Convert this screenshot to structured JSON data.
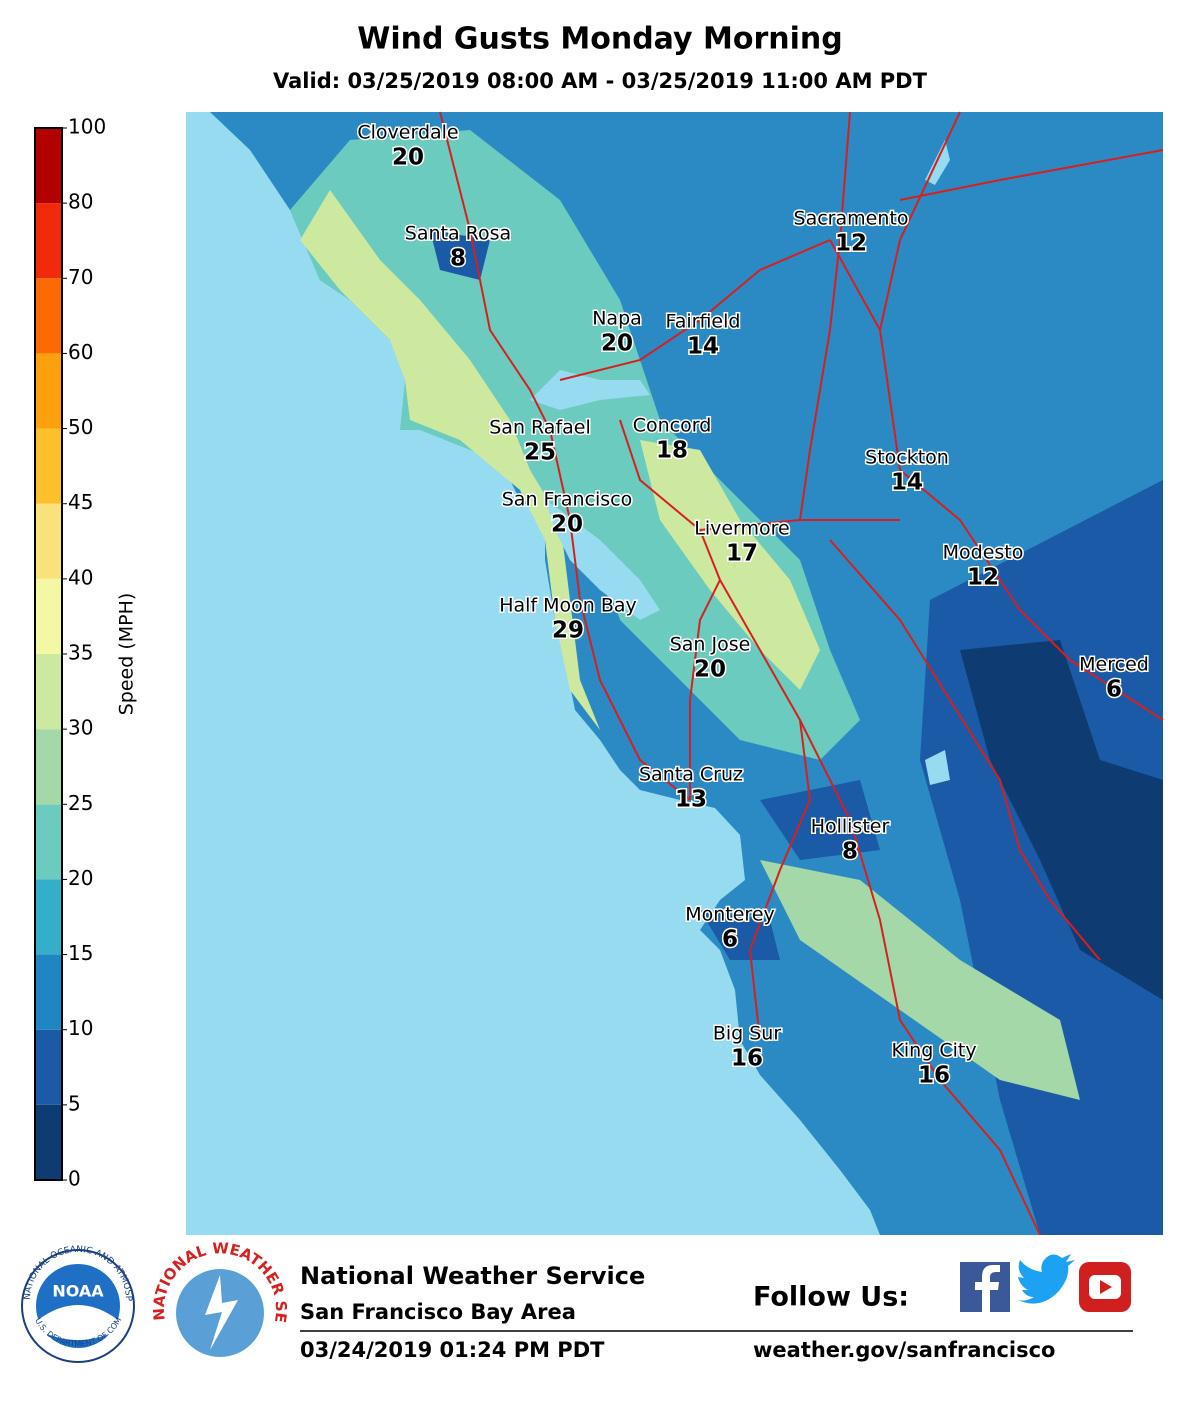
{
  "header": {
    "title": "Wind Gusts Monday Morning",
    "subtitle": "Valid: 03/25/2019 08:00 AM - 03/25/2019 11:00 AM PDT"
  },
  "colorbar": {
    "label": "Speed (MPH)",
    "ticks": [
      0,
      5,
      10,
      15,
      20,
      25,
      30,
      35,
      40,
      45,
      50,
      60,
      70,
      80,
      100
    ],
    "colors": [
      "#0d3b72",
      "#1b5aa6",
      "#1f86c4",
      "#35aec9",
      "#6ccbbf",
      "#a4d8a8",
      "#cde9a0",
      "#f4f7a4",
      "#f8e27a",
      "#fcc12a",
      "#fca10b",
      "#fc6a04",
      "#f22a0c",
      "#b30000"
    ]
  },
  "cities": [
    {
      "name": "Cloverdale",
      "value": 20
    },
    {
      "name": "Santa Rosa",
      "value": 8
    },
    {
      "name": "Napa",
      "value": 20
    },
    {
      "name": "Fairfield",
      "value": 14
    },
    {
      "name": "Sacramento",
      "value": 12
    },
    {
      "name": "San Rafael",
      "value": 25
    },
    {
      "name": "Concord",
      "value": 18
    },
    {
      "name": "Stockton",
      "value": 14
    },
    {
      "name": "San Francisco",
      "value": 20
    },
    {
      "name": "Livermore",
      "value": 17
    },
    {
      "name": "Modesto",
      "value": 12
    },
    {
      "name": "Half Moon Bay",
      "value": 29
    },
    {
      "name": "San Jose",
      "value": 20
    },
    {
      "name": "Merced",
      "value": 6
    },
    {
      "name": "Santa Cruz",
      "value": 13
    },
    {
      "name": "Hollister",
      "value": 8
    },
    {
      "name": "Monterey",
      "value": 6
    },
    {
      "name": "Big Sur",
      "value": 16
    },
    {
      "name": "King City",
      "value": 16
    }
  ],
  "logos": {
    "noaa": "NOAA",
    "noaa_ring": "NATIONAL OCEANIC AND ATMOSPHERIC ADMINISTRATION",
    "noaa_ring_bottom": "U.S. DEPARTMENT OF COMMERCE",
    "nws_ring": "NATIONAL WEATHER SERVICE"
  },
  "footer": {
    "agency": "National Weather Service",
    "office": "San Francisco Bay Area",
    "issued": "03/24/2019 01:24 PM PDT",
    "follow": "Follow Us:",
    "url": "weather.gov/sanfrancisco"
  }
}
